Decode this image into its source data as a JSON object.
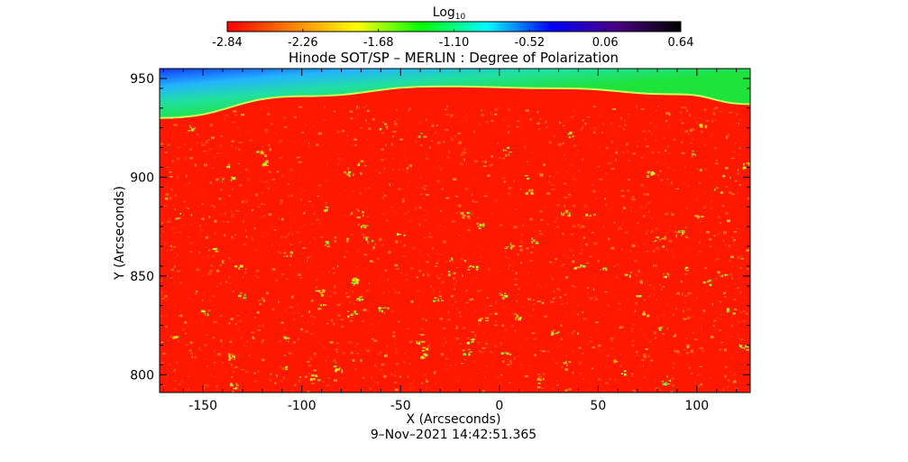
{
  "chart_data": {
    "type": "heatmap",
    "title": "Hinode SOT/SP – MERLIN : Degree of Polarization",
    "xlabel": "X (Arcseconds)",
    "ylabel": "Y (Arcseconds)",
    "xlim": [
      -172,
      127
    ],
    "ylim": [
      791,
      955
    ],
    "x_ticks": [
      -150,
      -100,
      -50,
      0,
      50,
      100
    ],
    "y_ticks": [
      800,
      850,
      900,
      950
    ],
    "timestamp": "9–Nov–2021 14:42:51.365",
    "colorbar": {
      "label": "Log",
      "label_subscript": "10",
      "scale": "log10",
      "range": [
        -2.84,
        0.64
      ],
      "ticks": [
        "-2.84",
        "-2.26",
        "-1.68",
        "-1.10",
        "-0.52",
        "0.06",
        "0.64"
      ],
      "colormap": [
        "#ff0000",
        "#ff8000",
        "#ffff00",
        "#00ff00",
        "#00ffff",
        "#0000ff",
        "#4b0082",
        "#000000"
      ]
    },
    "limb_y_at_x": [
      {
        "x": -172,
        "y": 930
      },
      {
        "x": -100,
        "y": 941
      },
      {
        "x": -30,
        "y": 946
      },
      {
        "x": 30,
        "y": 945
      },
      {
        "x": 90,
        "y": 942
      },
      {
        "x": 127,
        "y": 937
      }
    ],
    "regions": {
      "on_disk": {
        "log10_polarization_approx": -2.7,
        "color": "#ff1800"
      },
      "off_limb": {
        "log10_polarization_approx": -1.1,
        "color": "#1de33a"
      },
      "limb_edge": {
        "color": "#c8ff5a"
      },
      "top_left_corner": {
        "color": "#1450ff"
      }
    }
  }
}
